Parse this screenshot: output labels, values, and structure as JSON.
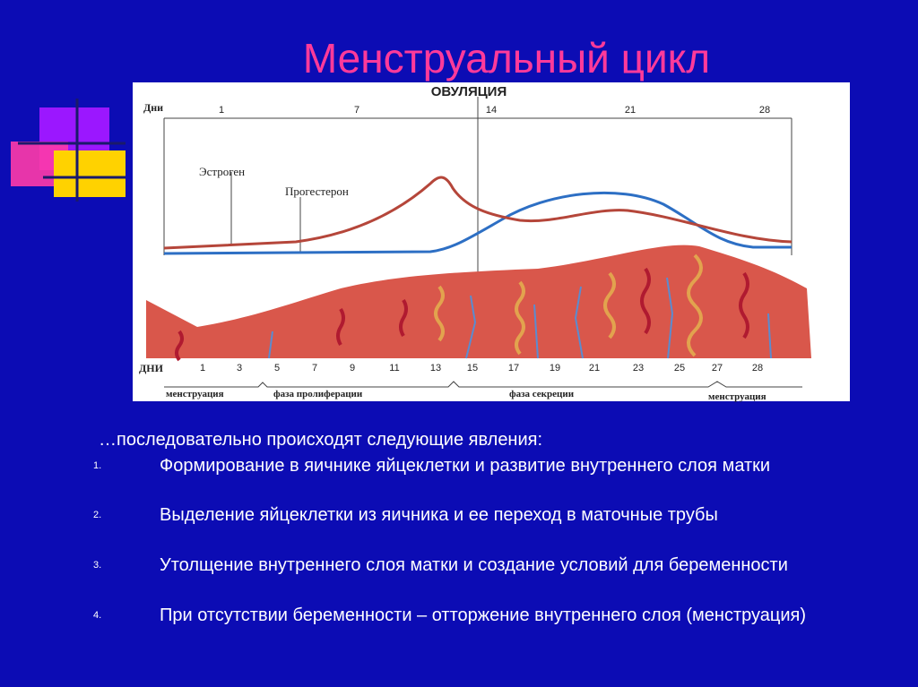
{
  "title": "Менструальный цикл",
  "diagram": {
    "ovulation": "ОВУЛЯЦИЯ",
    "days_top_label": "Дни",
    "days_top": [
      1,
      7,
      14,
      21,
      28
    ],
    "estrogen": "Эстроген",
    "progesterone": "Прогестерон",
    "days_bottom_label": "ДНИ",
    "days_bottom": [
      1,
      3,
      5,
      7,
      9,
      11,
      13,
      15,
      17,
      19,
      21,
      23,
      25,
      27,
      28
    ],
    "phases": [
      "менструация",
      "фаза пролиферации",
      "фаза секреции",
      "менструация"
    ]
  },
  "intro": "…последовательно происходят следующие явления:",
  "list": [
    {
      "marker": "1.",
      "text": "Формирование в яичнике яйцеклетки и развитие внутреннего слоя матки"
    },
    {
      "marker": "2.",
      "text": "Выделение яйцеклетки из яичника и ее переход в маточные трубы"
    },
    {
      "marker": "3.",
      "text": "Утолщение внутреннего слоя матки и создание условий для беременности"
    },
    {
      "marker": "4.",
      "text": "При отсутствии беременности – отторжение внутреннего слоя (менструация)"
    }
  ]
}
